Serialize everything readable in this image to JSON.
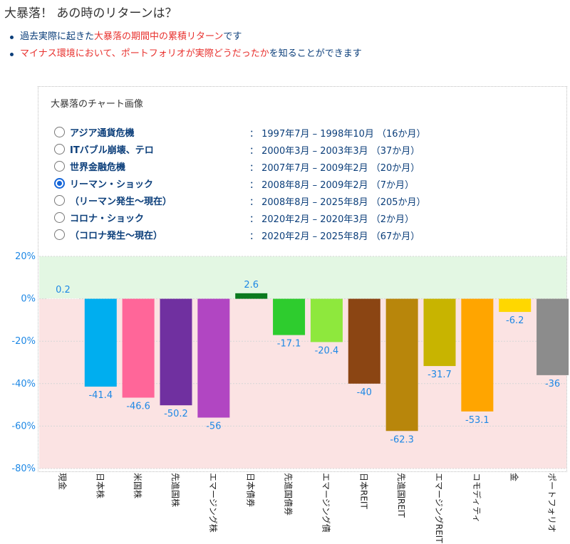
{
  "header": {
    "title": "大暴落！ あの時のリターンは？",
    "bullet1": [
      "過去実際に起きた",
      "大暴落の期間中の累積リターン",
      "です"
    ],
    "bullet2": [
      "マイナス環境において、ポートフォリオが実際どうだったか",
      "を知ることができます"
    ]
  },
  "panel": {
    "title": "大暴落のチャート画像",
    "options": [
      {
        "label": "アジア通貨危機",
        "period": "： 1997年7月 – 1998年10月 （16か月）",
        "selected": false
      },
      {
        "label": "ITバブル崩壊、テロ",
        "period": "： 2000年3月 – 2003年3月 （37か月）",
        "selected": false
      },
      {
        "label": "世界金融危機",
        "period": "： 2007年7月 – 2009年2月 （20か月）",
        "selected": false
      },
      {
        "label": "リーマン・ショック",
        "period": "： 2008年8月 – 2009年2月 （7か月）",
        "selected": true
      },
      {
        "label": "（リーマン発生～現在）",
        "period": "： 2008年8月 – 2025年8月 （205か月）",
        "selected": false
      },
      {
        "label": "コロナ・ショック",
        "period": "： 2020年2月 – 2020年3月 （2か月）",
        "selected": false
      },
      {
        "label": "（コロナ発生～現在）",
        "period": "： 2020年2月 – 2025年8月 （67か月）",
        "selected": false
      }
    ]
  },
  "chart_data": {
    "type": "bar",
    "categories": [
      "現金",
      "日本株",
      "米国株",
      "先進国株",
      "エマージング株",
      "日本債券",
      "先進国債券",
      "エマージング債",
      "日本REIT",
      "先進国REIT",
      "エマージングREIT",
      "コモディティ",
      "金",
      "ポートフォリオ"
    ],
    "values": [
      0.2,
      -41.4,
      -46.6,
      -50.2,
      -56,
      2.6,
      -17.1,
      -20.4,
      -40,
      -62.3,
      -31.7,
      -53.1,
      -6.2,
      -36
    ],
    "colors": [
      "#ffffff",
      "#00aeef",
      "#ff6699",
      "#7030a0",
      "#b146c2",
      "#0a7a1e",
      "#2ecc2e",
      "#8ee83d",
      "#8b4513",
      "#b8860b",
      "#c8b400",
      "#ffa500",
      "#ffd700",
      "#8c8c8c"
    ],
    "yticks": [
      "20%",
      "0%",
      "-20%",
      "-40%",
      "-60%",
      "-80%"
    ],
    "ylim": [
      -80,
      20
    ],
    "positive_band_color": "#e3f7e3",
    "negative_band_color": "#fbe3e3",
    "label_color": "#1e88e5"
  }
}
